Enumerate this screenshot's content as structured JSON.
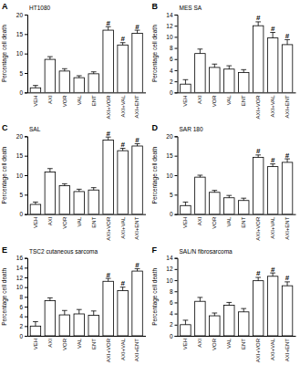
{
  "chart_data": [
    {
      "type": "bar",
      "panel": "A",
      "title": "HT1080",
      "ylabel": "Percentage cell death",
      "categories": [
        "VEH",
        "AXI",
        "VOR",
        "VAL",
        "ENT",
        "AXI+VOR",
        "AXI+VAL",
        "AXI+ENT"
      ],
      "values": [
        1.2,
        8.5,
        5.5,
        3.8,
        4.8,
        16,
        12.2,
        15.2
      ],
      "errors": [
        0.6,
        0.7,
        0.6,
        0.5,
        0.5,
        0.9,
        0.6,
        0.8
      ],
      "annotations": [
        {
          "category": "AXI+VOR",
          "text": "#"
        },
        {
          "category": "AXI+VAL",
          "text": "#"
        },
        {
          "category": "AXI+ENT",
          "text": "#"
        }
      ],
      "color": "#ffffff",
      "ylim": [
        0,
        20
      ],
      "yticks": [
        0,
        5,
        10,
        15,
        20
      ]
    },
    {
      "type": "bar",
      "panel": "B",
      "title": "MES SA",
      "ylabel": "Percentage cell death",
      "categories": [
        "VEH",
        "AXI",
        "VOR",
        "VAL",
        "ENT",
        "AXI+VOR",
        "AXI+VAL",
        "AXI+ENT"
      ],
      "values": [
        1.5,
        7,
        4.5,
        4.2,
        3.6,
        12,
        9.8,
        8.6
      ],
      "errors": [
        0.8,
        0.8,
        0.6,
        0.6,
        0.5,
        0.7,
        1,
        0.9
      ],
      "annotations": [
        {
          "category": "AXI+VOR",
          "text": "#"
        },
        {
          "category": "AXI+VAL",
          "text": "#"
        },
        {
          "category": "AXI+ENT",
          "text": "#"
        }
      ],
      "color": "#ffffff",
      "ylim": [
        0,
        14
      ],
      "yticks": [
        0,
        2,
        4,
        6,
        8,
        10,
        12,
        14
      ]
    },
    {
      "type": "bar",
      "panel": "C",
      "title": "SAL",
      "ylabel": "Percentage cell death",
      "categories": [
        "VEH",
        "AXI",
        "VOR",
        "VAL",
        "ENT",
        "AXI+VOR",
        "AXI+VAL",
        "AXI+ENT"
      ],
      "values": [
        2.5,
        10.8,
        7.3,
        5.8,
        6.2,
        19,
        16.3,
        17.5
      ],
      "errors": [
        0.6,
        0.9,
        0.5,
        0.6,
        0.6,
        0.8,
        0.6,
        0.6
      ],
      "annotations": [
        {
          "category": "AXI+VOR",
          "text": "#"
        },
        {
          "category": "AXI+VAL",
          "text": "#"
        },
        {
          "category": "AXI+ENT",
          "text": "#"
        }
      ],
      "color": "#ffffff",
      "ylim": [
        0,
        20
      ],
      "yticks": [
        0,
        5,
        10,
        15,
        20
      ]
    },
    {
      "type": "bar",
      "panel": "D",
      "title": "SAR 180",
      "ylabel": "Percentage cell death",
      "categories": [
        "VEH",
        "AXI",
        "VOR",
        "VAL",
        "ENT",
        "AXI+VOR",
        "AXI+VAL",
        "AXI+ENT"
      ],
      "values": [
        2.2,
        9.5,
        5.6,
        4.2,
        3.5,
        14.6,
        12.2,
        13.3
      ],
      "errors": [
        0.9,
        0.5,
        0.5,
        0.6,
        0.6,
        0.6,
        0.7,
        0.9
      ],
      "annotations": [
        {
          "category": "AXI+VOR",
          "text": "#"
        },
        {
          "category": "AXI+VAL",
          "text": "#"
        },
        {
          "category": "AXI+ENT",
          "text": "#"
        }
      ],
      "color": "#ffffff",
      "ylim": [
        0,
        20
      ],
      "yticks": [
        0,
        5,
        10,
        15,
        20
      ]
    },
    {
      "type": "bar",
      "panel": "E",
      "title": "TSC2 cutaneous sarcoma",
      "ylabel": "Percentage cell death",
      "categories": [
        "VEH",
        "AXI",
        "VOR",
        "VAL",
        "ENT",
        "AXI+VOR",
        "AXI+VAL",
        "AXI+ENT"
      ],
      "values": [
        2,
        7.2,
        4.3,
        4.5,
        4.2,
        11.2,
        9.3,
        13.3
      ],
      "errors": [
        0.9,
        0.6,
        0.9,
        0.9,
        0.9,
        0.6,
        0.7,
        0.5
      ],
      "annotations": [
        {
          "category": "AXI+VOR",
          "text": "#"
        },
        {
          "category": "AXI+VAL",
          "text": "#"
        },
        {
          "category": "AXI+ENT",
          "text": "#"
        }
      ],
      "color": "#ffffff",
      "ylim": [
        0,
        16
      ],
      "yticks": [
        0,
        2,
        4,
        6,
        8,
        10,
        12,
        14,
        16
      ]
    },
    {
      "type": "bar",
      "panel": "F",
      "title": "SAL/N fibrosarcoma",
      "ylabel": "Percentage cell death",
      "categories": [
        "VEH",
        "AXI",
        "VOR",
        "VAL",
        "ENT",
        "AXI+VOR",
        "AXI+VAL",
        "AXI+ENT"
      ],
      "values": [
        2,
        6.2,
        3.6,
        5.5,
        4.3,
        9.9,
        10.7,
        9
      ],
      "errors": [
        0.8,
        0.7,
        0.5,
        0.5,
        0.6,
        0.6,
        0.6,
        0.7
      ],
      "annotations": [
        {
          "category": "AXI+VOR",
          "text": "#"
        },
        {
          "category": "AXI+VAL",
          "text": "#"
        },
        {
          "category": "AXI+ENT",
          "text": "#"
        }
      ],
      "color": "#ffffff",
      "ylim": [
        0,
        14
      ],
      "yticks": [
        0,
        2,
        4,
        6,
        8,
        10,
        12,
        14
      ]
    }
  ]
}
